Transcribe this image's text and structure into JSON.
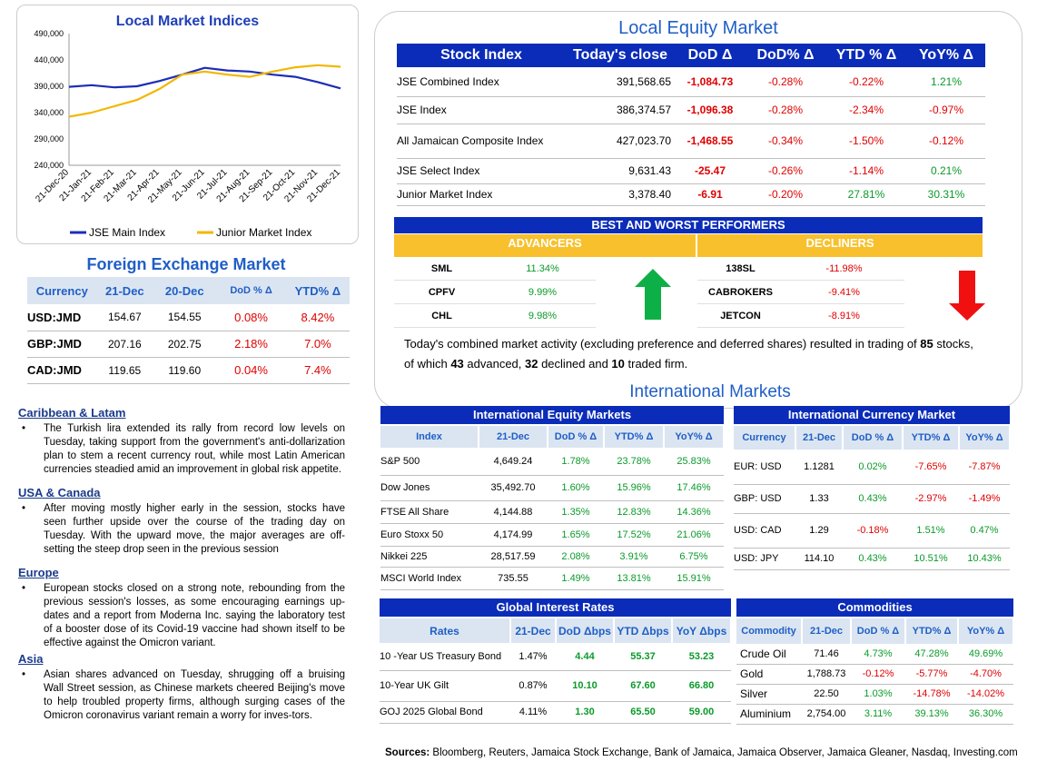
{
  "chart": {
    "title": "Local Market Indices",
    "legend": [
      {
        "name": "JSE Main Index",
        "color": "#1c2db8"
      },
      {
        "name": "Junior Market Index",
        "color": "#f2b700"
      }
    ]
  },
  "chart_data": {
    "type": "line",
    "title": "Local Market Indices",
    "xlabel": "",
    "ylabel": "",
    "ylim": [
      240000,
      490000
    ],
    "y_ticks": [
      "490,000",
      "440,000",
      "390,000",
      "340,000",
      "290,000",
      "240,000"
    ],
    "x_ticks": [
      "21-Dec-20",
      "21-Jan-21",
      "21-Feb-21",
      "21-Mar-21",
      "21-Apr-21",
      "21-May-21",
      "21-Jun-21",
      "21-Jul-21",
      "21-Aug-21",
      "21-Sep-21",
      "21-Oct-21",
      "21-Nov-21",
      "21-Dec-21"
    ],
    "series": [
      {
        "name": "JSE Main Index",
        "values": [
          389000,
          392000,
          388000,
          390000,
          400000,
          412000,
          425000,
          420000,
          418000,
          412000,
          408000,
          398000,
          386000
        ]
      },
      {
        "name": "Junior Market Index",
        "values": [
          332000,
          340000,
          352000,
          364000,
          385000,
          412000,
          418000,
          412000,
          408000,
          418000,
          426000,
          430000,
          427000
        ]
      }
    ]
  },
  "fx": {
    "title": "Foreign Exchange Market",
    "headers": [
      "Currency",
      "21-Dec",
      "20-Dec",
      "DoD % Δ",
      "YTD% Δ"
    ],
    "rows": [
      [
        "USD:JMD",
        "154.67",
        "154.55",
        "0.08%",
        "8.42%"
      ],
      [
        "GBP:JMD",
        "207.16",
        "202.75",
        "2.18%",
        "7.0%"
      ],
      [
        "CAD:JMD",
        "119.65",
        "119.60",
        "0.04%",
        "7.4%"
      ]
    ]
  },
  "news": [
    {
      "heading": "Caribbean & Latam",
      "text": "The Turkish lira extended its rally from record low levels on Tuesday, taking support from the government's anti-dollarization plan to stem a recent currency rout, while most Latin American currencies steadied amid an improvement in global risk appetite."
    },
    {
      "heading": "USA & Canada",
      "text": "After moving mostly higher early in the session, stocks have seen further upside over the course of the trading day on Tuesday. With the upward move, the major averages are off-setting the steep drop seen in the previous session"
    },
    {
      "heading": "Europe",
      "text": "European stocks closed on a strong note, rebounding from the previous session's losses, as some encouraging earnings up-dates and a report from Moderna Inc. saying the laboratory test of a booster dose of its Covid-19 vaccine had shown itself to be effective against the Omicron variant."
    },
    {
      "heading": "Asia",
      "text": "Asian shares advanced on Tuesday, shrugging off a bruising Wall Street session, as Chinese markets cheered Beijing's move to help troubled property firms, although surging cases of the Omicron coronavirus variant remain a worry for inves-tors."
    }
  ],
  "equity": {
    "title": "Local Equity Market",
    "headers": [
      "Stock Index",
      "Today's close",
      "DoD  Δ",
      "DoD% Δ",
      "YTD % Δ",
      "YoY% Δ"
    ],
    "rows": [
      [
        "JSE Combined Index",
        "391,568.65",
        "-1,084.73",
        "-0.28%",
        "-0.22%",
        "1.21%"
      ],
      [
        "JSE Index",
        "386,374.57",
        "-1,096.38",
        "-0.28%",
        "-2.34%",
        "-0.97%"
      ],
      [
        "All Jamaican Composite Index",
        "427,023.70",
        "-1,468.55",
        "-0.34%",
        "-1.50%",
        "-0.12%"
      ],
      [
        "JSE Select Index",
        "9,631.43",
        "-25.47",
        "-0.26%",
        "-1.14%",
        "0.21%"
      ],
      [
        "Junior Market Index",
        "3,378.40",
        "-6.91",
        "-0.20%",
        "27.81%",
        "30.31%"
      ]
    ]
  },
  "performers": {
    "title": "BEST AND WORST PERFORMERS",
    "advancers_label": "ADVANCERS",
    "decliners_label": "DECLINERS",
    "advancers": [
      [
        "SML",
        "11.34%"
      ],
      [
        "CPFV",
        "9.99%"
      ],
      [
        "CHL",
        "9.98%"
      ]
    ],
    "decliners": [
      [
        "138SL",
        "-11.98%"
      ],
      [
        "CABROKERS",
        "-9.41%"
      ],
      [
        "JETCON",
        "-8.91%"
      ]
    ]
  },
  "summary": {
    "part1": "Today's combined market activity (excluding preference and deferred shares) resulted in trading of ",
    "total": "85",
    "part2": "stocks, of which ",
    "advanced": "43",
    "part3": " advanced, ",
    "declined": "32",
    "part4": " declined and ",
    "firm": "10",
    "part5": " traded firm."
  },
  "intl": {
    "title": "International Markets",
    "equity": {
      "title": "International Equity Markets",
      "headers": [
        "Index",
        "21-Dec",
        "DoD % Δ",
        "YTD% Δ",
        "YoY% Δ"
      ],
      "rows": [
        [
          "S&P 500",
          "4,649.24",
          "1.78%",
          "23.78%",
          "25.83%"
        ],
        [
          "Dow Jones",
          "35,492.70",
          "1.60%",
          "15.96%",
          "17.46%"
        ],
        [
          "FTSE All Share",
          "4,144.88",
          "1.35%",
          "12.83%",
          "14.36%"
        ],
        [
          "Euro Stoxx 50",
          "4,174.99",
          "1.65%",
          "17.52%",
          "21.06%"
        ],
        [
          "Nikkei 225",
          "28,517.59",
          "2.08%",
          "3.91%",
          "6.75%"
        ],
        [
          "MSCI World Index",
          "735.55",
          "1.49%",
          "13.81%",
          "15.91%"
        ]
      ]
    },
    "currency": {
      "title": "International Currency Market",
      "headers": [
        "Currency",
        "21-Dec",
        "DoD % Δ",
        "YTD% Δ",
        "YoY% Δ"
      ],
      "rows": [
        [
          "EUR: USD",
          "1.1281",
          "0.02%",
          "-7.65%",
          "-7.87%"
        ],
        [
          "GBP: USD",
          "1.33",
          "0.43%",
          "-2.97%",
          "-1.49%"
        ],
        [
          "USD: CAD",
          "1.29",
          "-0.18%",
          "1.51%",
          "0.47%"
        ],
        [
          "USD: JPY",
          "114.10",
          "0.43%",
          "10.51%",
          "10.43%"
        ]
      ]
    },
    "rates": {
      "title": "Global Interest Rates",
      "headers": [
        "Rates",
        "21-Dec",
        "DoD Δbps",
        "YTD Δbps",
        "YoY Δbps"
      ],
      "rows": [
        [
          "10 -Year US Treasury Bond",
          "1.47%",
          "4.44",
          "55.37",
          "53.23"
        ],
        [
          "10-Year UK Gilt",
          "0.87%",
          "10.10",
          "67.60",
          "66.80"
        ],
        [
          "GOJ 2025 Global Bond",
          "4.11%",
          "1.30",
          "65.50",
          "59.00"
        ]
      ]
    },
    "commodities": {
      "title": "Commodities",
      "headers": [
        "Commodity",
        "21-Dec",
        "DoD % Δ",
        "YTD% Δ",
        "YoY% Δ"
      ],
      "rows": [
        [
          "Crude Oil",
          "71.46",
          "4.73%",
          "47.28%",
          "49.69%"
        ],
        [
          "Gold",
          "1,788.73",
          "-0.12%",
          "-5.77%",
          "-4.70%"
        ],
        [
          "Silver",
          "22.50",
          "1.03%",
          "-14.78%",
          "-14.02%"
        ],
        [
          "Aluminium",
          "2,754.00",
          "3.11%",
          "39.13%",
          "36.30%"
        ]
      ]
    }
  },
  "sources": {
    "label": "Sources:",
    "text": " Bloomberg, Reuters, Jamaica Stock Exchange, Bank of Jamaica, Jamaica Observer, Jamaica Gleaner, Nasdaq, Investing.com"
  },
  "colors": {
    "header_blue": "#0b2cb8",
    "title_blue": "#1f5fc6",
    "positive": "#0a9a2a",
    "negative": "#e00000",
    "gold": "#f7c02c"
  }
}
